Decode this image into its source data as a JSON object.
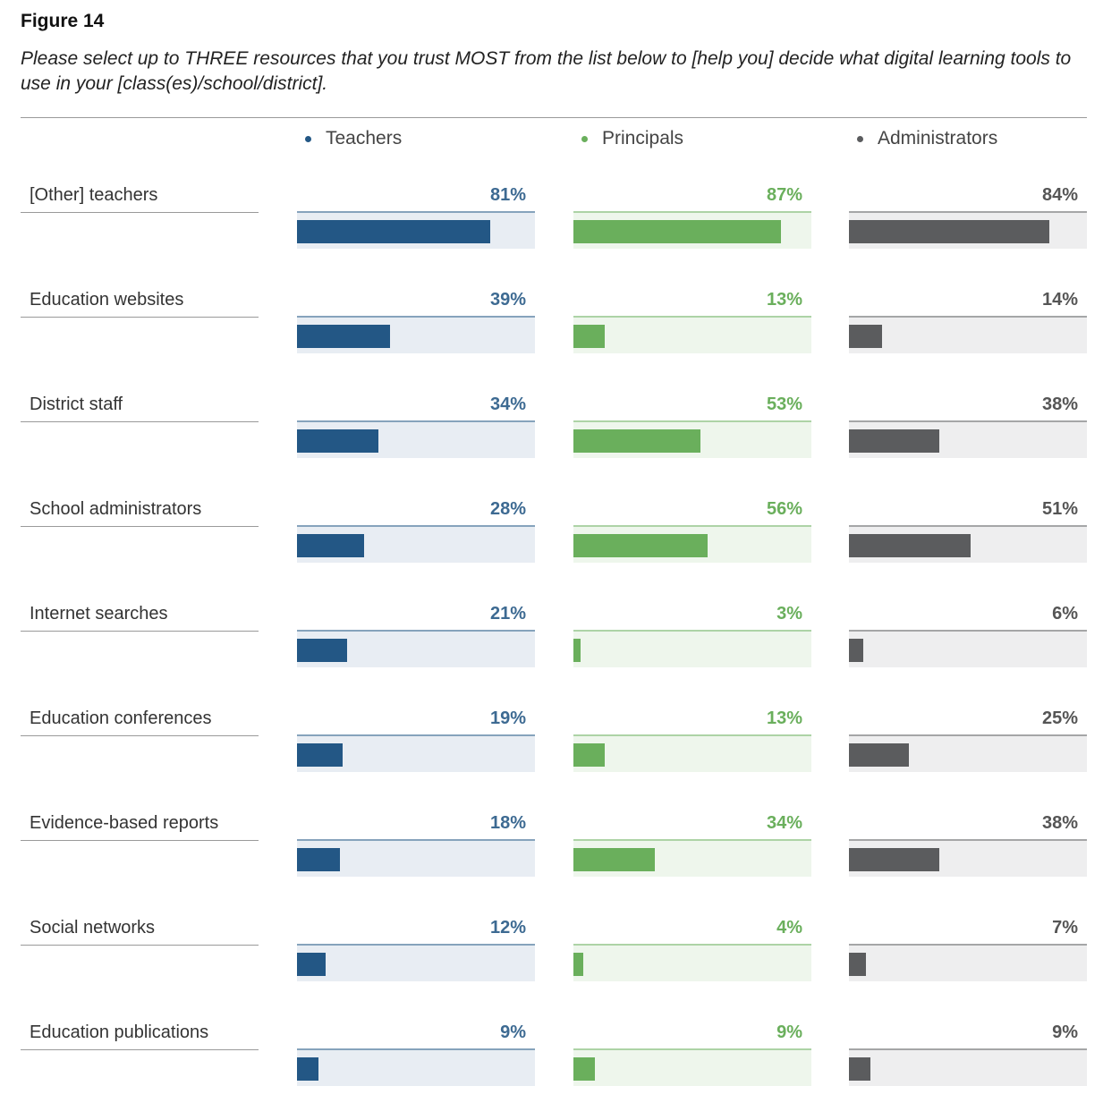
{
  "figure_label": "Figure 14",
  "subtitle": "Please select up to THREE resources that you trust MOST from the list below to [help you] decide what digital learning tools to use in your [class(es)/school/district].",
  "colors": {
    "Teachers": {
      "bar": "#235785",
      "track": "#e8edf3",
      "text": "#3d6a92"
    },
    "Principals": {
      "bar": "#6aaf5c",
      "track": "#eef6ec",
      "text": "#6aaf5c"
    },
    "Administrators": {
      "bar": "#5b5c5e",
      "track": "#eeeeef",
      "text": "#555555"
    }
  },
  "chart_data": {
    "type": "bar",
    "categories": [
      "[Other] teachers",
      "Education websites",
      "District staff",
      "School administrators",
      "Internet searches",
      "Education conferences",
      "Evidence-based reports",
      "Social networks",
      "Education publications"
    ],
    "series": [
      {
        "name": "Teachers",
        "values": [
          81,
          39,
          34,
          28,
          21,
          19,
          18,
          12,
          9
        ],
        "labels": [
          "81%",
          "39%",
          "34%",
          "28%",
          "21%",
          "19%",
          "18%",
          "12%",
          "9%"
        ]
      },
      {
        "name": "Principals",
        "values": [
          87,
          13,
          53,
          56,
          3,
          13,
          34,
          4,
          9
        ],
        "labels": [
          "87%",
          "13%",
          "53%",
          "56%",
          "3%",
          "13%",
          "34%",
          "4%",
          "9%"
        ]
      },
      {
        "name": "Administrators",
        "values": [
          84,
          14,
          38,
          51,
          6,
          25,
          38,
          7,
          9
        ],
        "labels": [
          "84%",
          "14%",
          "38%",
          "51%",
          "6%",
          "25%",
          "38%",
          "7%",
          "9%"
        ]
      }
    ],
    "ylim": [
      0,
      100
    ]
  }
}
